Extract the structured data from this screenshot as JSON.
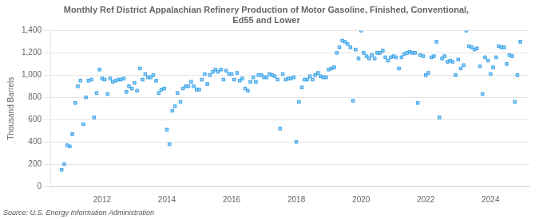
{
  "chart_data": {
    "type": "scatter",
    "title": "Monthly Ref District Appalachian Refinery Production of Motor Gasoline, Finished, Conventional,\nEd55 and Lower",
    "ylabel": "Thousand Barrels",
    "source": "Source: U.S. Energy Information Administration",
    "marker": "square",
    "grid": "y",
    "xlim": [
      2010.4,
      2025.2
    ],
    "xticks": [
      2012,
      2014,
      2016,
      2018,
      2020,
      2022,
      2024
    ],
    "ylim": [
      0,
      1400
    ],
    "yticks": [
      0,
      200,
      400,
      600,
      800,
      {
        "value": 1000,
        "label": "1,000"
      },
      {
        "value": 1200,
        "label": "1,200"
      },
      {
        "value": 1400,
        "label": "1,400"
      }
    ],
    "x": [
      2010.75,
      2010.83,
      2010.92,
      2011.0,
      2011.08,
      2011.17,
      2011.25,
      2011.33,
      2011.42,
      2011.5,
      2011.58,
      2011.67,
      2011.75,
      2011.83,
      2011.92,
      2012.0,
      2012.08,
      2012.17,
      2012.25,
      2012.33,
      2012.42,
      2012.5,
      2012.58,
      2012.67,
      2012.75,
      2012.83,
      2012.92,
      2013.0,
      2013.08,
      2013.17,
      2013.25,
      2013.33,
      2013.42,
      2013.5,
      2013.58,
      2013.67,
      2013.75,
      2013.83,
      2013.92,
      2014.0,
      2014.08,
      2014.17,
      2014.25,
      2014.33,
      2014.42,
      2014.5,
      2014.58,
      2014.67,
      2014.75,
      2014.83,
      2014.92,
      2015.0,
      2015.08,
      2015.17,
      2015.25,
      2015.33,
      2015.42,
      2015.5,
      2015.58,
      2015.67,
      2015.75,
      2015.83,
      2015.92,
      2016.0,
      2016.08,
      2016.17,
      2016.25,
      2016.33,
      2016.42,
      2016.5,
      2016.58,
      2016.67,
      2016.75,
      2016.83,
      2016.92,
      2017.0,
      2017.08,
      2017.17,
      2017.25,
      2017.33,
      2017.42,
      2017.5,
      2017.58,
      2017.67,
      2017.75,
      2017.83,
      2017.92,
      2018.0,
      2018.08,
      2018.17,
      2018.25,
      2018.33,
      2018.42,
      2018.5,
      2018.58,
      2018.67,
      2018.75,
      2018.83,
      2018.92,
      2019.0,
      2019.08,
      2019.17,
      2019.25,
      2019.33,
      2019.42,
      2019.5,
      2019.58,
      2019.67,
      2019.75,
      2019.83,
      2019.92,
      2020.0,
      2020.08,
      2020.17,
      2020.25,
      2020.33,
      2020.42,
      2020.5,
      2020.58,
      2020.67,
      2020.75,
      2020.83,
      2020.92,
      2021.0,
      2021.08,
      2021.17,
      2021.25,
      2021.33,
      2021.42,
      2021.5,
      2021.58,
      2021.67,
      2021.75,
      2021.83,
      2021.92,
      2022.0,
      2022.08,
      2022.17,
      2022.25,
      2022.33,
      2022.42,
      2022.5,
      2022.58,
      2022.67,
      2022.75,
      2022.83,
      2022.92,
      2023.0,
      2023.08,
      2023.17,
      2023.25,
      2023.33,
      2023.42,
      2023.5,
      2023.58,
      2023.67,
      2023.75,
      2023.83,
      2023.92,
      2024.0,
      2024.08,
      2024.17,
      2024.25,
      2024.33,
      2024.42,
      2024.5,
      2024.58,
      2024.67,
      2024.75,
      2024.83,
      2024.92
    ],
    "values": [
      150,
      200,
      370,
      360,
      470,
      750,
      900,
      950,
      560,
      800,
      950,
      960,
      620,
      840,
      1050,
      970,
      960,
      830,
      970,
      940,
      950,
      960,
      960,
      970,
      850,
      900,
      880,
      930,
      860,
      1060,
      960,
      1010,
      980,
      980,
      1000,
      950,
      840,
      870,
      880,
      510,
      380,
      680,
      720,
      840,
      760,
      880,
      900,
      900,
      940,
      900,
      870,
      870,
      960,
      1010,
      920,
      1000,
      1030,
      1050,
      1030,
      1050,
      960,
      1040,
      1010,
      1010,
      960,
      1020,
      950,
      970,
      880,
      860,
      940,
      980,
      940,
      1000,
      1000,
      980,
      980,
      1010,
      1000,
      990,
      960,
      520,
      1010,
      960,
      970,
      970,
      980,
      400,
      760,
      890,
      960,
      960,
      990,
      960,
      1000,
      1020,
      990,
      980,
      980,
      1050,
      1060,
      1070,
      1200,
      1250,
      1310,
      1300,
      1280,
      1250,
      770,
      1230,
      1150,
      1400,
      1200,
      1170,
      1150,
      1180,
      1150,
      1200,
      1200,
      1220,
      1160,
      1130,
      1160,
      1170,
      1160,
      1060,
      1160,
      1190,
      1200,
      1210,
      1200,
      1200,
      750,
      1180,
      1170,
      1000,
      1020,
      1160,
      1170,
      1300,
      620,
      1150,
      1170,
      1120,
      1130,
      1120,
      1000,
      1140,
      1060,
      1090,
      1400,
      1260,
      1250,
      1230,
      1240,
      1080,
      830,
      1160,
      1130,
      1010,
      1070,
      1160,
      1260,
      1250,
      1250,
      1100,
      1180,
      1170,
      760,
      1000,
      1300
    ]
  }
}
